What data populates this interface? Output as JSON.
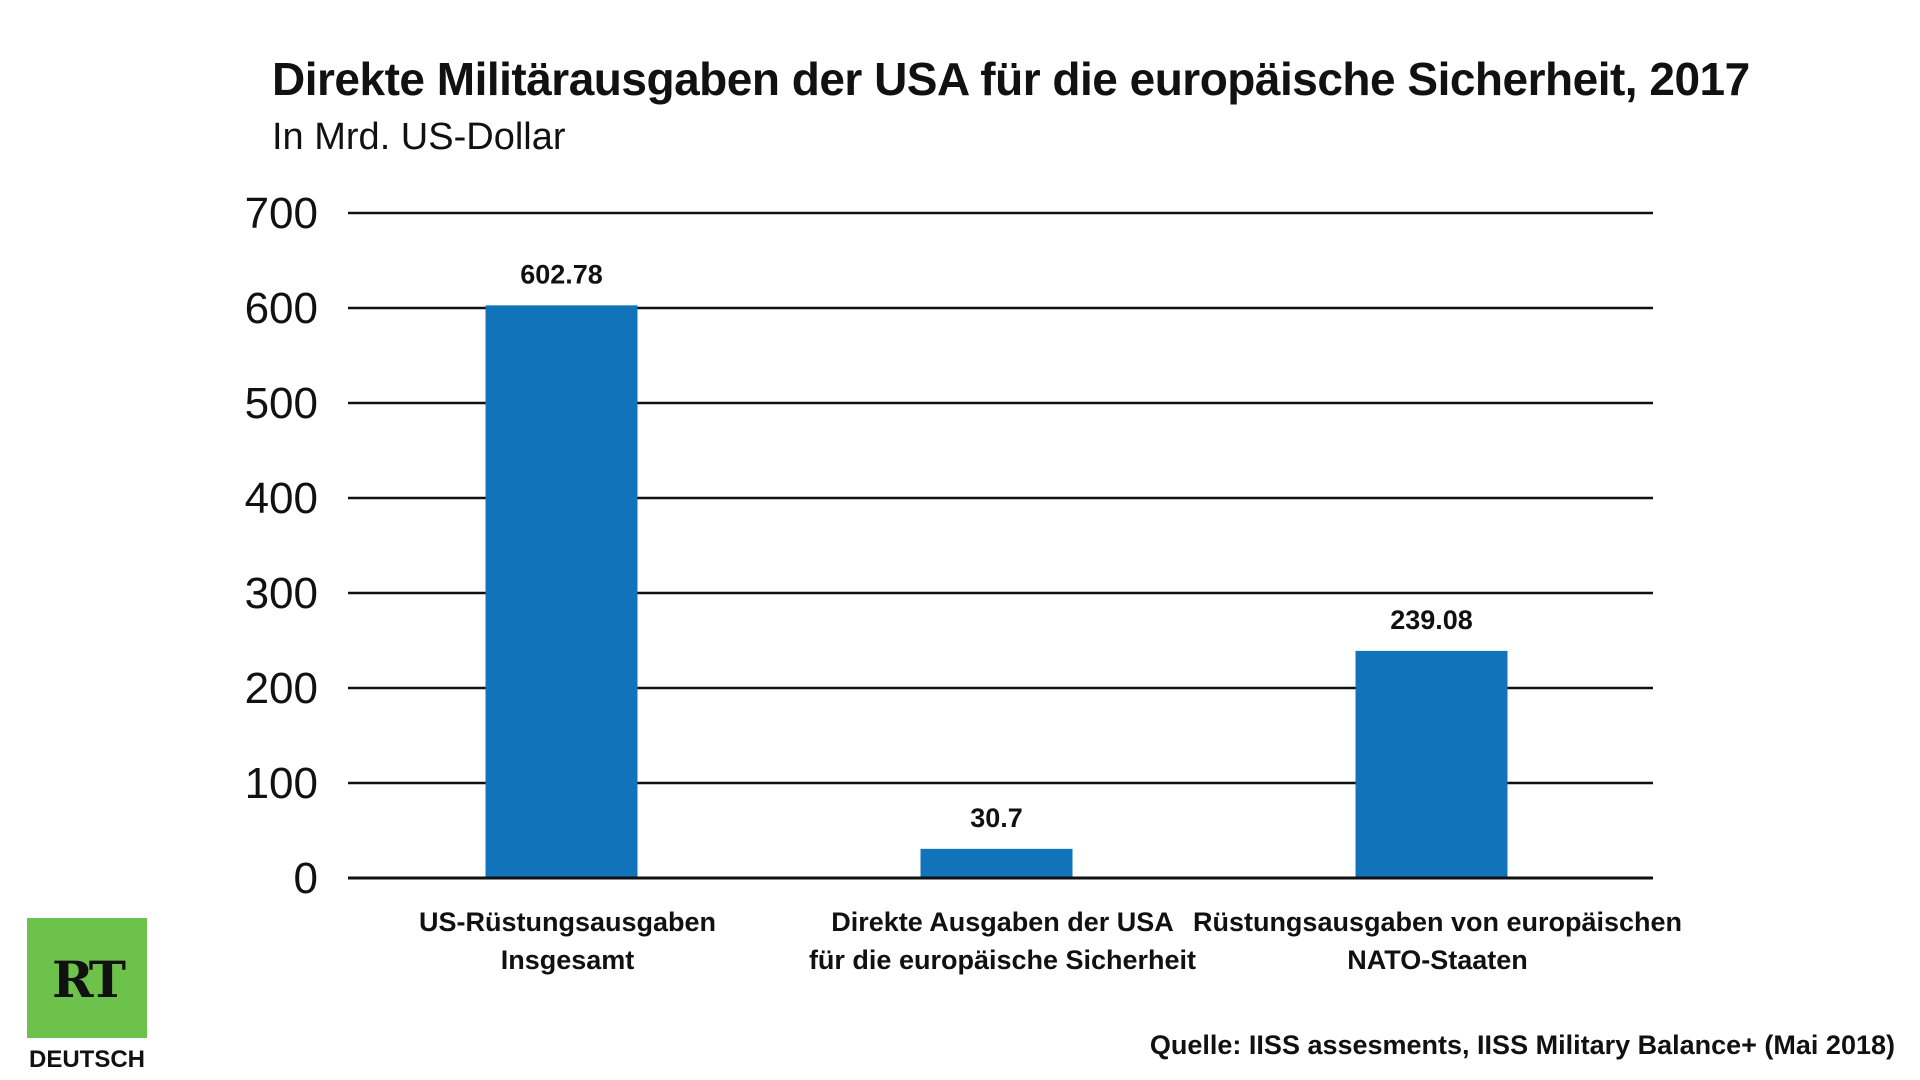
{
  "chart_data": {
    "type": "bar",
    "title": "Direkte Militärausgaben der USA für die europäische Sicherheit, 2017",
    "subtitle": "In Mrd. US-Dollar",
    "categories": [
      [
        "US-Rüstungsausgaben",
        "Insgesamt"
      ],
      [
        "Direkte Ausgaben der USA",
        "für die europäische Sicherheit"
      ],
      [
        "Rüstungsausgaben von europäischen",
        "NATO-Staaten"
      ]
    ],
    "values": [
      602.78,
      30.7,
      239.08
    ],
    "value_labels": [
      "602.78",
      "30.7",
      "239.08"
    ],
    "yticks": [
      0,
      100,
      200,
      300,
      400,
      500,
      600,
      700
    ],
    "ylim": [
      0,
      700
    ],
    "xlabel": "",
    "ylabel": "",
    "grid": true,
    "bar_color": "#1174bb",
    "gridline_color": "#111111"
  },
  "footer": {
    "source": "Quelle: IISS assesments, IISS Military Balance+ (Mai 2018)"
  },
  "logo": {
    "text": "RT",
    "caption": "DEUTSCH",
    "color": "#6cc24a"
  }
}
